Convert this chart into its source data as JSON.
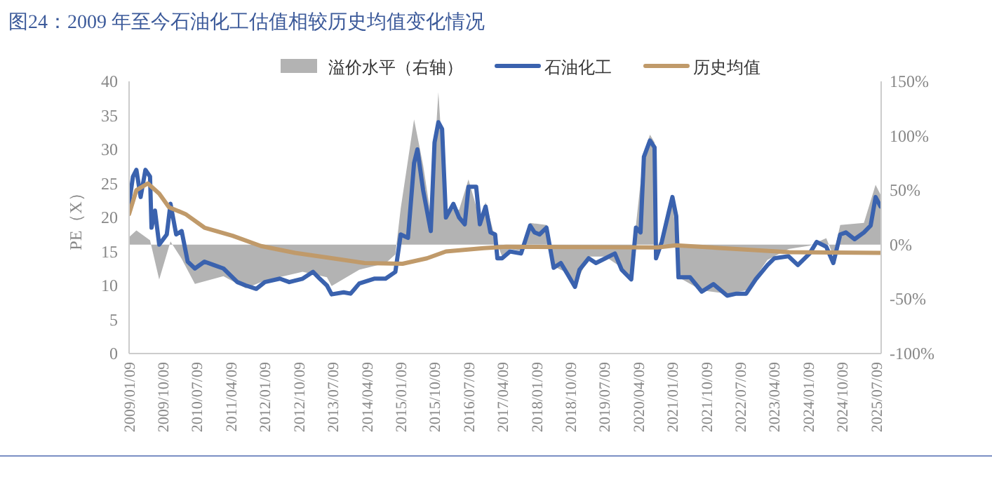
{
  "chart_data": {
    "type": "line",
    "title": "图24：2009 年至今石油化工估值相较历史均值变化情况",
    "ylabel": "PE（X）",
    "legend": "top",
    "grid": false,
    "line_style": "solid",
    "marker": "none",
    "xlim": [
      "2009-01-09",
      "2025-08-20"
    ],
    "xticks": [
      {
        "value": "2009-01-09",
        "label": "2009/01/09"
      },
      {
        "value": "2009-10-09",
        "label": "2009/10/09"
      },
      {
        "value": "2010-07-09",
        "label": "2010/07/09"
      },
      {
        "value": "2011-04-09",
        "label": "2011/04/09"
      },
      {
        "value": "2012-01-09",
        "label": "2012/01/09"
      },
      {
        "value": "2012-10-09",
        "label": "2012/10/09"
      },
      {
        "value": "2013-07-09",
        "label": "2013/07/09"
      },
      {
        "value": "2014-04-09",
        "label": "2014/04/09"
      },
      {
        "value": "2015-01-09",
        "label": "2015/01/09"
      },
      {
        "value": "2015-10-09",
        "label": "2015/10/09"
      },
      {
        "value": "2016-07-09",
        "label": "2016/07/09"
      },
      {
        "value": "2017-04-09",
        "label": "2017/04/09"
      },
      {
        "value": "2018-01-09",
        "label": "2018/01/09"
      },
      {
        "value": "2018-10-09",
        "label": "2018/10/09"
      },
      {
        "value": "2019-07-09",
        "label": "2019/07/09"
      },
      {
        "value": "2020-04-09",
        "label": "2020/04/09"
      },
      {
        "value": "2021-01-09",
        "label": "2021/01/09"
      },
      {
        "value": "2021-10-09",
        "label": "2021/10/09"
      },
      {
        "value": "2022-07-09",
        "label": "2022/07/09"
      },
      {
        "value": "2023-04-09",
        "label": "2023/04/09"
      },
      {
        "value": "2024-01-09",
        "label": "2024/01/09"
      },
      {
        "value": "2024-10-09",
        "label": "2024/10/09"
      },
      {
        "value": "2025-07-09",
        "label": "2025/07/09"
      }
    ],
    "ylim": [
      0,
      40
    ],
    "yticks": [
      0,
      5,
      10,
      15,
      20,
      25,
      30,
      35,
      40
    ],
    "y2lim": [
      -100,
      150
    ],
    "y2ticks": [
      {
        "value": -100,
        "label": "-100%"
      },
      {
        "value": -50,
        "label": "-50%"
      },
      {
        "value": 0,
        "label": "0%"
      },
      {
        "value": 50,
        "label": "50%"
      },
      {
        "value": 100,
        "label": "100%"
      },
      {
        "value": 150,
        "label": "150%"
      }
    ],
    "series": [
      {
        "name": "溢价水平（右轴）",
        "type": "area",
        "axis": "y2",
        "color": "#b3b3b3",
        "x": [
          "2009-01-09",
          "2009-03-09",
          "2009-06-27",
          "2009-09-09",
          "2009-12-09",
          "2010-03-09",
          "2010-06-24",
          "2011-02-09",
          "2011-08-09",
          "2012-01-09",
          "2012-11-09",
          "2013-05-24",
          "2013-07-01",
          "2014-02-09",
          "2014-09-09",
          "2014-11-27",
          "2015-01-09",
          "2015-04-27",
          "2015-07-09",
          "2015-09-09",
          "2015-11-09",
          "2016-01-09",
          "2016-04-24",
          "2016-07-09",
          "2016-10-09",
          "2016-11-24",
          "2017-02-09",
          "2017-04-06",
          "2017-06-09",
          "2017-09-06",
          "2017-11-18",
          "2018-03-30",
          "2018-05-27",
          "2018-09-18",
          "2018-11-15",
          "2019-03-06",
          "2019-07-18",
          "2019-11-27",
          "2020-02-12",
          "2020-03-21",
          "2020-05-24",
          "2020-07-12",
          "2020-08-18",
          "2020-08-30",
          "2020-10-15",
          "2021-01-09",
          "2021-02-27",
          "2021-09-03",
          "2022-03-27",
          "2022-08-27",
          "2023-02-15",
          "2023-08-03",
          "2024-01-21",
          "2024-06-03",
          "2024-07-30",
          "2024-09-24",
          "2025-04-03",
          "2025-07-06",
          "2025-08-15"
        ],
        "values": [
          7,
          13,
          4,
          -32,
          3,
          -13,
          -36,
          -29,
          -40,
          -33,
          -25,
          -30,
          -38,
          -23,
          -17,
          -9,
          33,
          115,
          73,
          27,
          140,
          33,
          32,
          60,
          23,
          39,
          6,
          -11,
          -4,
          -6,
          20,
          18,
          -20,
          -26,
          -38,
          -11,
          -11,
          -21,
          -30,
          18,
          85,
          101,
          94,
          -10,
          4,
          46,
          -30,
          -42,
          -45,
          -42,
          -14,
          -4,
          -1,
          6,
          -10,
          18,
          20,
          55,
          46
        ]
      },
      {
        "name": "石油化工",
        "color": "#3a62ae",
        "x": [
          "2009-01-09",
          "2009-02-09",
          "2009-03-09",
          "2009-04-12",
          "2009-05-21",
          "2009-06-27",
          "2009-07-09",
          "2009-08-06",
          "2009-09-09",
          "2009-11-09",
          "2009-12-09",
          "2010-01-24",
          "2010-03-09",
          "2010-04-27",
          "2010-06-24",
          "2010-09-09",
          "2010-11-24",
          "2011-02-09",
          "2011-06-01",
          "2011-08-09",
          "2011-11-01",
          "2012-01-09",
          "2012-05-09",
          "2012-07-24",
          "2012-11-09",
          "2013-02-01",
          "2013-03-27",
          "2013-05-24",
          "2013-07-01",
          "2013-10-06",
          "2013-12-01",
          "2014-02-09",
          "2014-06-09",
          "2014-09-09",
          "2014-11-27",
          "2015-01-09",
          "2015-03-09",
          "2015-04-27",
          "2015-05-24",
          "2015-07-09",
          "2015-09-09",
          "2015-10-09",
          "2015-11-09",
          "2015-12-09",
          "2016-01-09",
          "2016-03-09",
          "2016-04-24",
          "2016-06-09",
          "2016-07-09",
          "2016-09-09",
          "2016-10-09",
          "2016-11-24",
          "2017-01-02",
          "2017-02-09",
          "2017-02-27",
          "2017-04-06",
          "2017-06-09",
          "2017-09-06",
          "2017-11-18",
          "2017-12-24",
          "2018-02-02",
          "2018-03-30",
          "2018-05-27",
          "2018-07-24",
          "2018-09-18",
          "2018-11-15",
          "2018-12-21",
          "2019-03-06",
          "2019-05-03",
          "2019-07-18",
          "2019-10-03",
          "2019-11-27",
          "2020-02-12",
          "2020-03-21",
          "2020-04-27",
          "2020-05-24",
          "2020-07-12",
          "2020-08-18",
          "2020-08-30",
          "2020-10-15",
          "2020-12-12",
          "2021-01-09",
          "2021-02-09",
          "2021-02-27",
          "2021-06-01",
          "2021-09-03",
          "2021-12-06",
          "2022-03-27",
          "2022-06-09",
          "2022-08-27",
          "2022-11-12",
          "2023-02-15",
          "2023-04-12",
          "2023-08-03",
          "2023-10-18",
          "2024-01-21",
          "2024-03-18",
          "2024-06-03",
          "2024-07-30",
          "2024-09-24",
          "2024-11-09",
          "2025-01-18",
          "2025-04-03",
          "2025-05-27",
          "2025-07-06",
          "2025-08-15"
        ],
        "values": [
          22,
          26,
          27,
          23,
          27,
          26,
          18.5,
          21,
          16,
          17.5,
          22,
          17.5,
          18,
          13.5,
          12.5,
          13.5,
          13,
          12.5,
          10.5,
          10,
          9.5,
          10.5,
          11,
          10.5,
          11,
          12,
          11,
          10,
          8.7,
          9,
          8.8,
          10.3,
          11,
          11,
          12,
          17.5,
          17,
          28,
          30,
          24,
          18,
          31,
          34,
          33,
          20,
          22,
          20,
          19,
          24.5,
          24.5,
          19,
          21.6,
          17.8,
          17.5,
          14,
          14,
          15,
          14.7,
          18.8,
          17.8,
          17.5,
          18.5,
          12.6,
          13.3,
          11.6,
          9.8,
          12.3,
          14,
          13.3,
          14,
          14.7,
          12.3,
          10.9,
          18.5,
          17.8,
          28.9,
          31.3,
          30.3,
          14,
          16.4,
          20.9,
          23,
          20.2,
          11.2,
          11.2,
          9.1,
          10.2,
          8.5,
          8.8,
          8.8,
          10.9,
          13,
          14,
          14.3,
          13,
          14.7,
          16.4,
          15.7,
          13.3,
          17.5,
          17.8,
          16.8,
          17.8,
          18.8,
          23,
          21.6
        ]
      },
      {
        "name": "历史均值",
        "color": "#c09a6a",
        "x": [
          "2009-01-09",
          "2009-03-09",
          "2009-06-09",
          "2009-09-09",
          "2009-11-27",
          "2010-04-09",
          "2010-09-09",
          "2011-04-24",
          "2011-12-09",
          "2012-09-09",
          "2013-07-09",
          "2014-03-24",
          "2015-01-24",
          "2015-08-09",
          "2016-01-09",
          "2016-11-09",
          "2017-05-09",
          "2020-09-09",
          "2021-02-09",
          "2023-08-09",
          "2025-08-15"
        ],
        "values": [
          20.5,
          24,
          25,
          23.5,
          21.5,
          20.5,
          18.5,
          17.3,
          15.8,
          14.8,
          14,
          13.3,
          13.2,
          14,
          15,
          15.5,
          15.7,
          15.6,
          15.9,
          14.9,
          14.8
        ]
      }
    ]
  }
}
